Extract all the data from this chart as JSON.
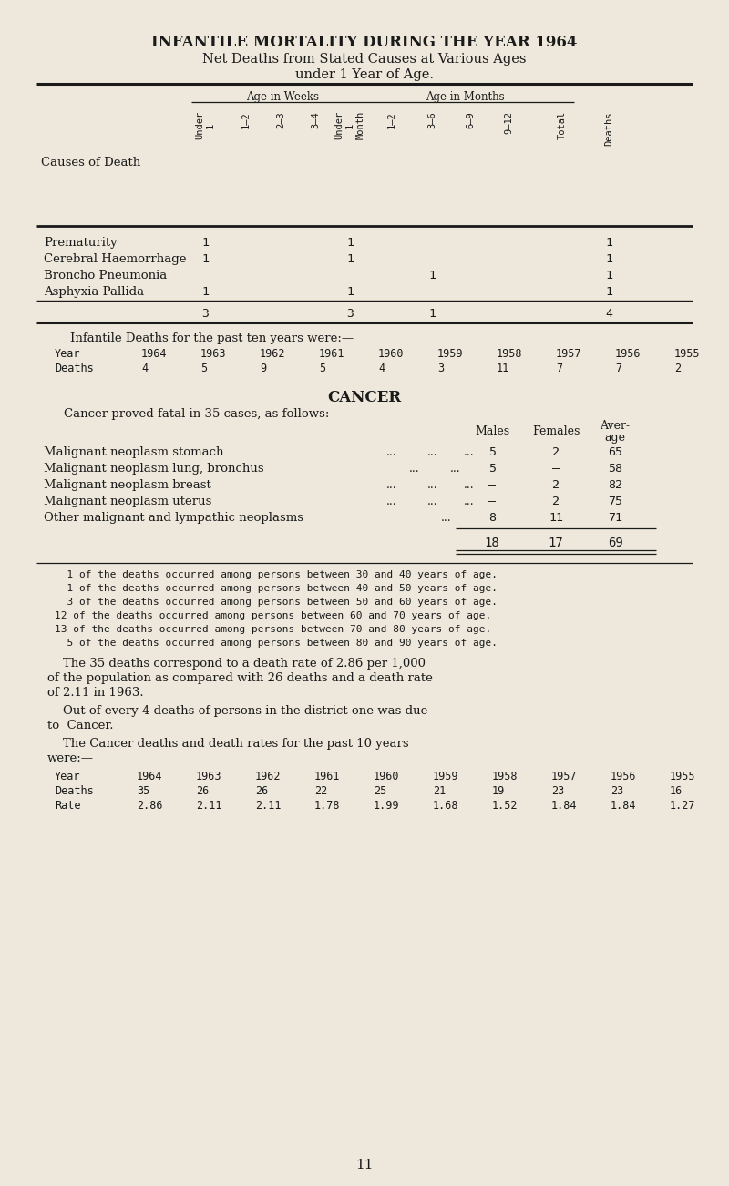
{
  "bg_color": "#ede8db",
  "text_color": "#1a1a1a",
  "title1": "INFANTILE MORTALITY DURING THE YEAR 1964",
  "title2": "Net Deaths from Stated Causes at Various Ages",
  "title3": "under 1 Year of Age.",
  "col_headers_weeks": "Age in Weeks",
  "col_headers_months": "Age in Months",
  "col_label_texts": [
    "Under\n1",
    "1—2",
    "2—3",
    "3—4",
    "Under\n1\nMonth",
    "1—2",
    "3—6",
    "6—9",
    "9—12",
    "Total",
    "Deaths"
  ],
  "causes": [
    "Prematurity",
    "Cerebral Haemorrhage",
    "Broncho Pneumonia",
    "Asphyxia Pallida"
  ],
  "cause_data": {
    "Prematurity": [
      1,
      0,
      0,
      0,
      1,
      0,
      0,
      0,
      0,
      0,
      1
    ],
    "Cerebral Haemorrhage": [
      1,
      0,
      0,
      0,
      1,
      0,
      0,
      0,
      0,
      0,
      1
    ],
    "Broncho Pneumonia": [
      0,
      0,
      0,
      0,
      0,
      0,
      1,
      0,
      0,
      0,
      1
    ],
    "Asphyxia Pallida": [
      1,
      0,
      0,
      0,
      1,
      0,
      0,
      0,
      0,
      0,
      1
    ]
  },
  "totals_row": [
    3,
    0,
    0,
    0,
    3,
    0,
    1,
    0,
    0,
    0,
    4
  ],
  "infantile_intro": "    Infantile Deaths for the past ten years were:—",
  "infantile_years": [
    "Year",
    "1964",
    "1963",
    "1962",
    "1961",
    "1960",
    "1959",
    "1958",
    "1957",
    "1956",
    "1955"
  ],
  "infantile_deaths": [
    "Deaths",
    "4",
    "5",
    "9",
    "5",
    "4",
    "3",
    "11",
    "7",
    "7",
    "2"
  ],
  "cancer_title": "CANCER",
  "cancer_subtitle": "Cancer proved fatal in 35 cases, as follows:—",
  "cancer_col_headers": [
    "Males",
    "Females",
    "Aver-\nage"
  ],
  "cancer_rows": [
    {
      "label": "Malignant neoplasm stomach",
      "dots": "...   ...   ...",
      "males": "5",
      "females": "2",
      "avg": "65"
    },
    {
      "label": "Malignant neoplasm lung, bronchus",
      "dots": "...   ...",
      "males": "5",
      "females": "—",
      "avg": "58"
    },
    {
      "label": "Malignant neoplasm breast",
      "dots": "...   ...   ...",
      "males": "—",
      "females": "2",
      "avg": "82"
    },
    {
      "label": "Malignant neoplasm uterus",
      "dots": "...   ...   ...",
      "males": "—",
      "females": "2",
      "avg": "75"
    },
    {
      "label": "Other malignant and lympathic neoplasms",
      "dots": "...",
      "males": "8",
      "females": "11",
      "avg": "71"
    }
  ],
  "cancer_total_males": "18",
  "cancer_total_females": "17",
  "cancer_total_avg": "69",
  "age_dist_lines": [
    "  1 of the deaths occurred among persons between 30 and 40 years of age.",
    "  1 of the deaths occurred among persons between 40 and 50 years of age.",
    "  3 of the deaths occurred among persons between 50 and 60 years of age.",
    "12 of the deaths occurred among persons between 60 and 70 years of age.",
    "13 of the deaths occurred among persons between 70 and 80 years of age.",
    "  5 of the deaths occurred among persons between 80 and 90 years of age."
  ],
  "para1_lines": [
    "    The 35 deaths correspond to a death rate of 2.86 per 1,000",
    "of the population as compared with 26 deaths and a death rate",
    "of 2.11 in 1963."
  ],
  "para2_lines": [
    "    Out of every 4 deaths of persons in the district one was due",
    "to  Cancer."
  ],
  "para3_lines": [
    "    The Cancer deaths and death rates for the past 10 years",
    "were:—"
  ],
  "cancer_years": [
    "Year",
    "1964",
    "1963",
    "1962",
    "1961",
    "1960",
    "1959",
    "1958",
    "1957",
    "1956",
    "1955"
  ],
  "cancer_deaths_row": [
    "Deaths",
    "35",
    "26",
    "26",
    "22",
    "25",
    "21",
    "19",
    "23",
    "23",
    "16"
  ],
  "cancer_rate_row": [
    "Rate",
    "2.86",
    "2.11",
    "2.11",
    "1.78",
    "1.99",
    "1.68",
    "1.52",
    "1.84",
    "1.84",
    "1.27"
  ],
  "page_num": "11",
  "fig_w": 8.0,
  "fig_h": 13.02,
  "dpi": 100
}
